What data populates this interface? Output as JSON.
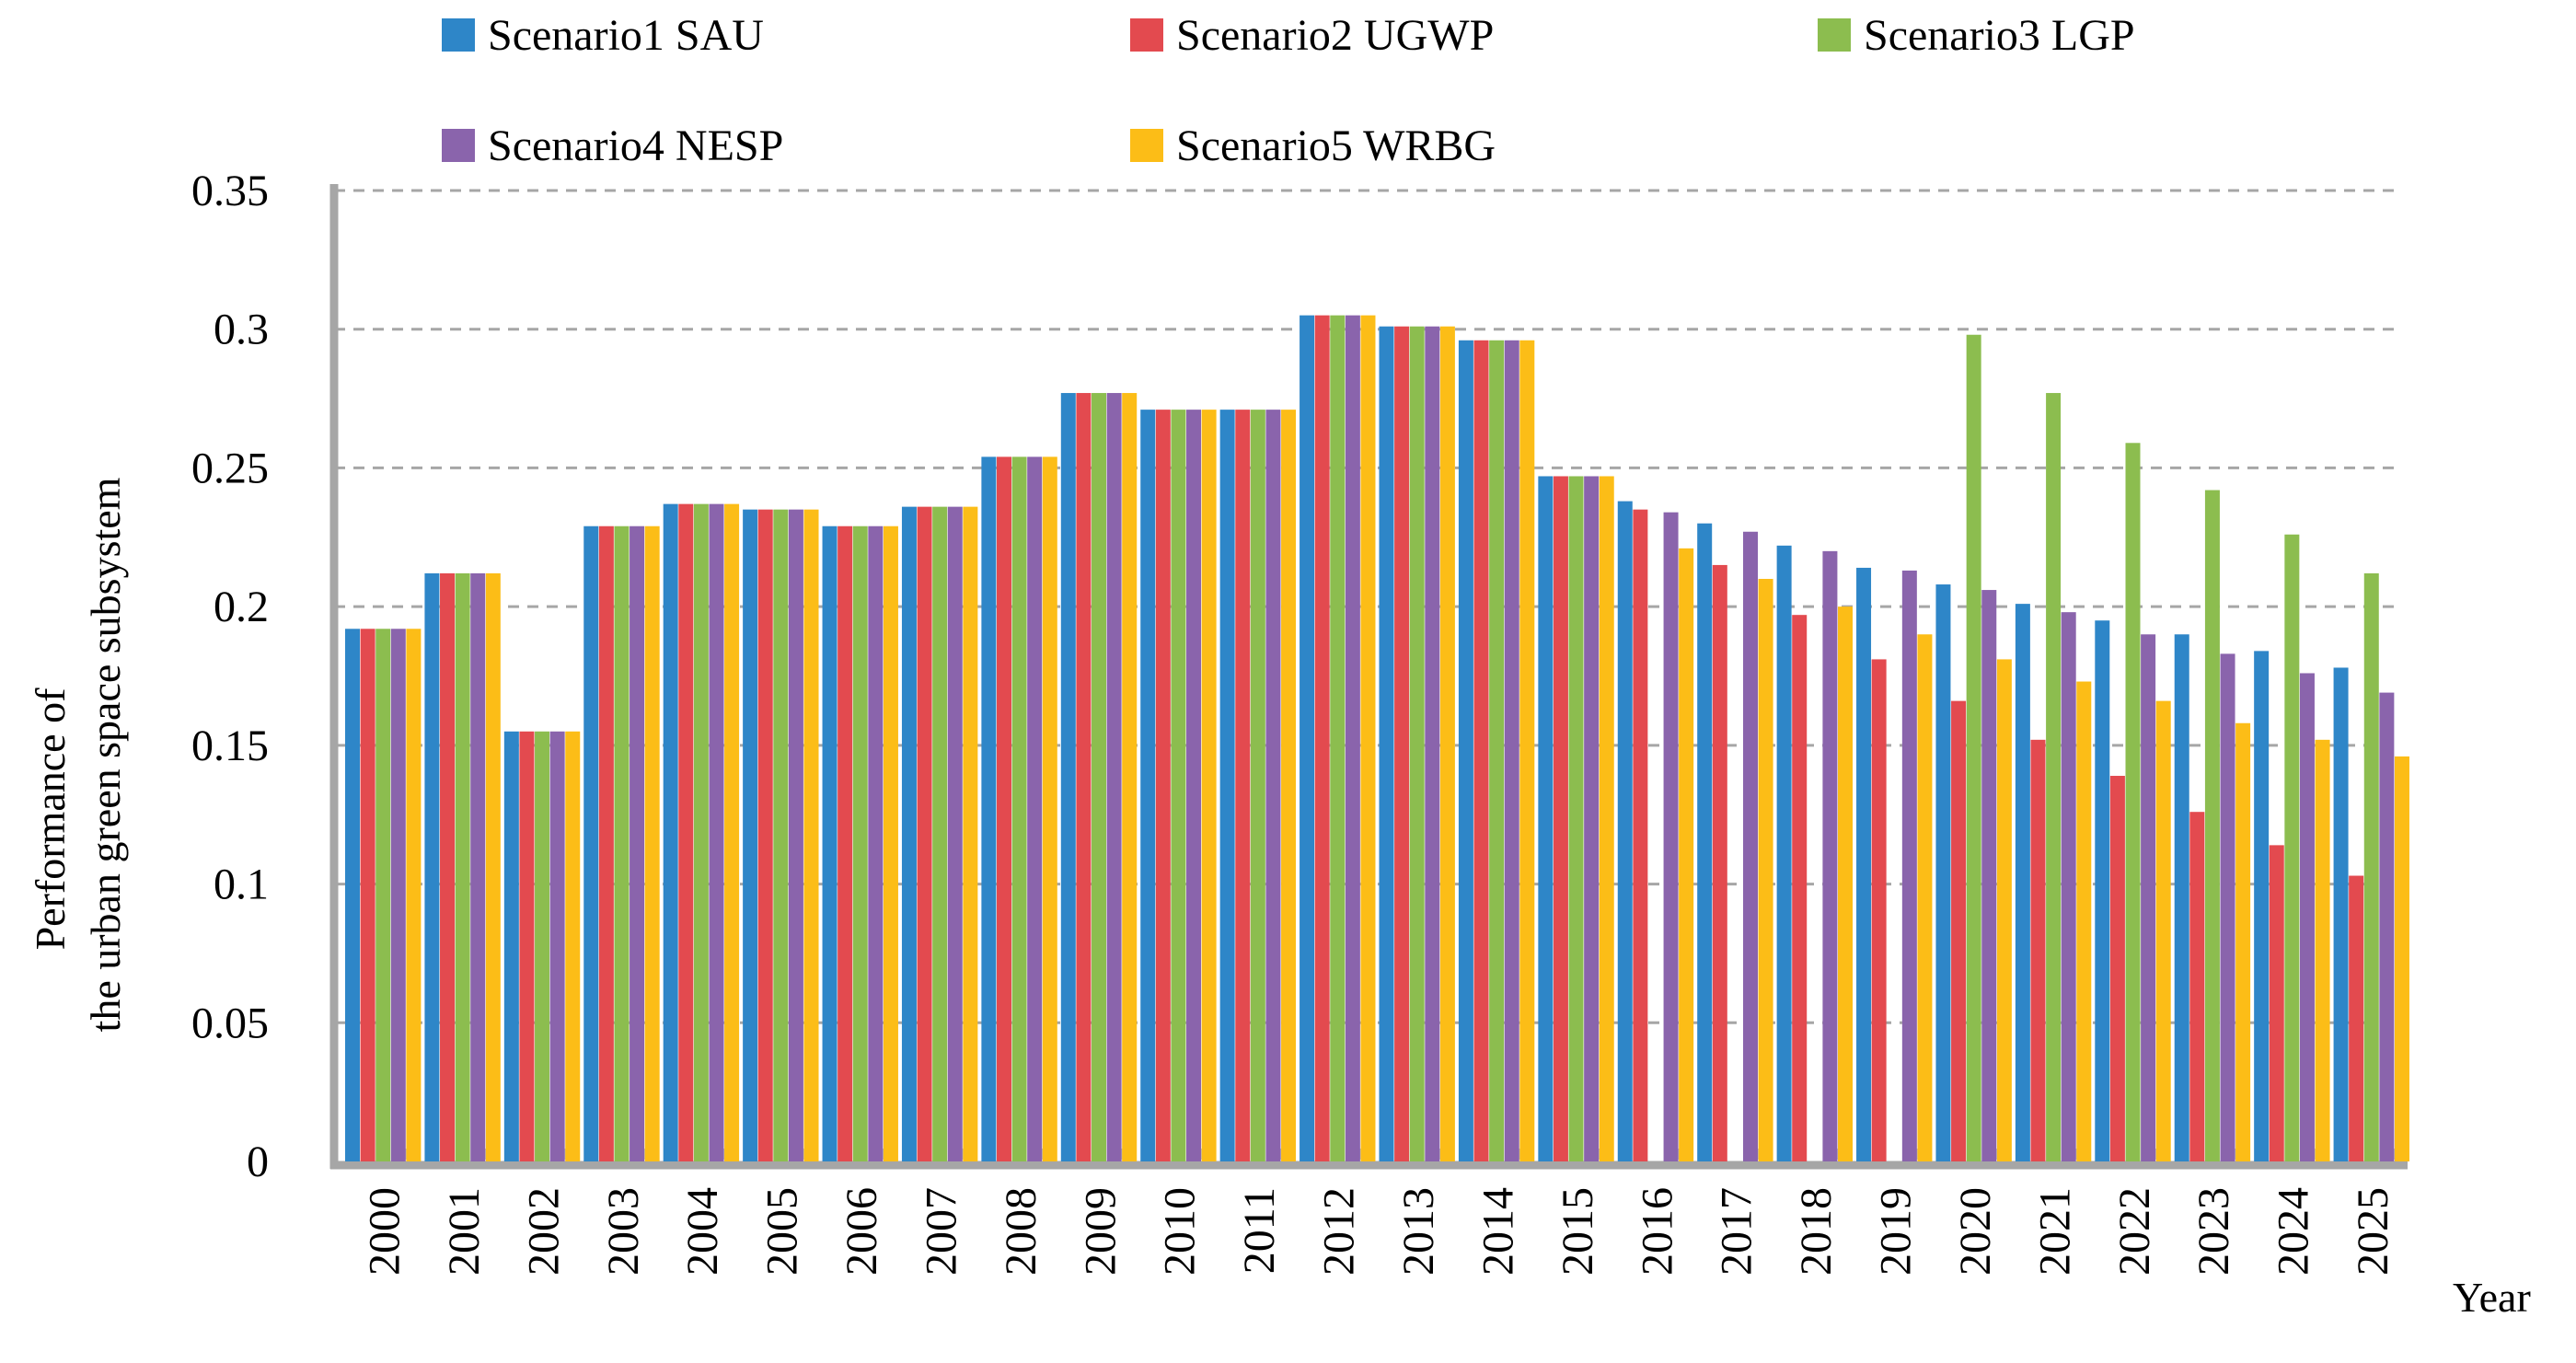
{
  "chart_data": {
    "type": "bar",
    "title": "",
    "xlabel": "Year",
    "ylabel_lines": [
      "Performance of",
      "the urban green space subsystem"
    ],
    "ylim": [
      0,
      0.35
    ],
    "yticks": [
      0,
      0.05,
      0.1,
      0.15,
      0.2,
      0.25,
      0.3,
      0.35
    ],
    "ytick_labels": [
      "0",
      "0.05",
      "0.1",
      "0.15",
      "0.2",
      "0.25",
      "0.3",
      "0.35"
    ],
    "grid": true,
    "legend_position": "top",
    "categories": [
      "2000",
      "2001",
      "2002",
      "2003",
      "2004",
      "2005",
      "2006",
      "2007",
      "2008",
      "2009",
      "2010",
      "2011",
      "2012",
      "2013",
      "2014",
      "2015",
      "2016",
      "2017",
      "2018",
      "2019",
      "2020",
      "2021",
      "2022",
      "2023",
      "2024",
      "2025"
    ],
    "series": [
      {
        "name": "Scenario1 SAU",
        "color": "#2e86c8",
        "values": [
          0.192,
          0.212,
          0.155,
          0.229,
          0.237,
          0.235,
          0.229,
          0.236,
          0.254,
          0.277,
          0.271,
          0.271,
          0.305,
          0.301,
          0.296,
          0.247,
          0.238,
          0.23,
          0.222,
          0.214,
          0.208,
          0.201,
          0.195,
          0.19,
          0.184,
          0.178
        ]
      },
      {
        "name": "Scenario2 UGWP",
        "color": "#e34a4f",
        "values": [
          0.192,
          0.212,
          0.155,
          0.229,
          0.237,
          0.235,
          0.229,
          0.236,
          0.254,
          0.277,
          0.271,
          0.271,
          0.305,
          0.301,
          0.296,
          0.247,
          0.235,
          0.215,
          0.197,
          0.181,
          0.166,
          0.152,
          0.139,
          0.126,
          0.114,
          0.103
        ]
      },
      {
        "name": "Scenario3 LGP",
        "color": "#8cbd4f",
        "values": [
          0.192,
          0.212,
          0.155,
          0.229,
          0.237,
          0.235,
          0.229,
          0.236,
          0.254,
          0.277,
          0.271,
          0.271,
          0.305,
          0.301,
          0.296,
          0.247,
          0,
          0,
          0,
          0,
          0.298,
          0.277,
          0.259,
          0.242,
          0.226,
          0.212
        ]
      },
      {
        "name": "Scenario4 NESP",
        "color": "#8a64ac",
        "values": [
          0.192,
          0.212,
          0.155,
          0.229,
          0.237,
          0.235,
          0.229,
          0.236,
          0.254,
          0.277,
          0.271,
          0.271,
          0.305,
          0.301,
          0.296,
          0.247,
          0.234,
          0.227,
          0.22,
          0.213,
          0.206,
          0.198,
          0.19,
          0.183,
          0.176,
          0.169
        ]
      },
      {
        "name": "Scenario5 WRBG",
        "color": "#fcbd17",
        "values": [
          0.192,
          0.212,
          0.155,
          0.229,
          0.237,
          0.235,
          0.229,
          0.236,
          0.254,
          0.277,
          0.271,
          0.271,
          0.305,
          0.301,
          0.296,
          0.247,
          0.221,
          0.21,
          0.2,
          0.19,
          0.181,
          0.173,
          0.166,
          0.158,
          0.152,
          0.146
        ]
      }
    ]
  }
}
